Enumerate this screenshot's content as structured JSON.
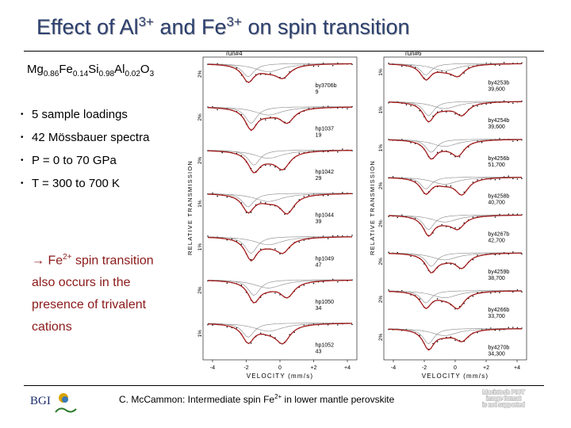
{
  "title": {
    "part1": "Effect of Al",
    "sup1": "3+",
    "part2": " and Fe",
    "sup2": "3+",
    "part3": " on spin transition"
  },
  "formula": {
    "t1": "Mg",
    "s1": "0.86",
    "t2": "Fe",
    "s2": "0.14",
    "t3": "Si",
    "s3": "0.98",
    "t4": "Al",
    "s4": "0.02",
    "t5": "O",
    "s5": "3"
  },
  "bullets": [
    "5 sample loadings",
    "42 Mössbauer spectra",
    "P = 0 to 70 GPa",
    "T = 300 to 700 K"
  ],
  "bullet_marker": "•",
  "conclusion": {
    "pre": "→ Fe",
    "sup": "2+",
    "line1_rest": " spin transition",
    "line2": "also occurs in the",
    "line3": "presence of trivalent",
    "line4": "cations"
  },
  "spectra": {
    "y_axis_label": "RELATIVE TRANSMISSION",
    "x_axis_label": "VELOCITY (mm/s)",
    "x_ticks": [
      "-4",
      "-2",
      "0",
      "+2",
      "+4"
    ],
    "left_panel": {
      "run": "run#4",
      "labels": [
        {
          "name": "by3706b",
          "sub": "9",
          "scale": "2%"
        },
        {
          "name": "hp1037",
          "sub": "19",
          "scale": "2%"
        },
        {
          "name": "hp1042",
          "sub": "29",
          "scale": "2%"
        },
        {
          "name": "hp1044",
          "sub": "39",
          "scale": "1%"
        },
        {
          "name": "hp1049",
          "sub": "47",
          "scale": "1%"
        },
        {
          "name": "hp1050",
          "sub": "34",
          "scale": "2%"
        },
        {
          "name": "hp1052",
          "sub": "43",
          "scale": "1%"
        }
      ]
    },
    "right_panel": {
      "run": "run#6",
      "labels": [
        {
          "name": "by4253b",
          "sub": "39,600",
          "scale": "1%"
        },
        {
          "name": "by4254b",
          "sub": "39,600",
          "scale": "1%"
        },
        {
          "name": "by4256b",
          "sub": "51,700",
          "scale": "1%"
        },
        {
          "name": "by4258b",
          "sub": "40,700",
          "scale": "2%"
        },
        {
          "name": "by4267b",
          "sub": "42,700",
          "scale": "2%"
        },
        {
          "name": "by4259b",
          "sub": "38,700",
          "scale": "2%"
        },
        {
          "name": "by4266b",
          "sub": "33,700",
          "scale": "2%"
        },
        {
          "name": "by4270b",
          "sub": "34,300",
          "scale": "2%"
        }
      ]
    },
    "colors": {
      "fit": "#a11a1a",
      "component": "#888888",
      "data": "#000000"
    }
  },
  "logo": {
    "text": "BGI"
  },
  "footer": {
    "pre": "C. McCammon: Intermediate spin Fe",
    "sup": "2+",
    "post": " in lower mantle perovskite"
  },
  "watermark": {
    "line1": "Macintosh PICT",
    "line2": "image format",
    "line3": "is not supported"
  }
}
